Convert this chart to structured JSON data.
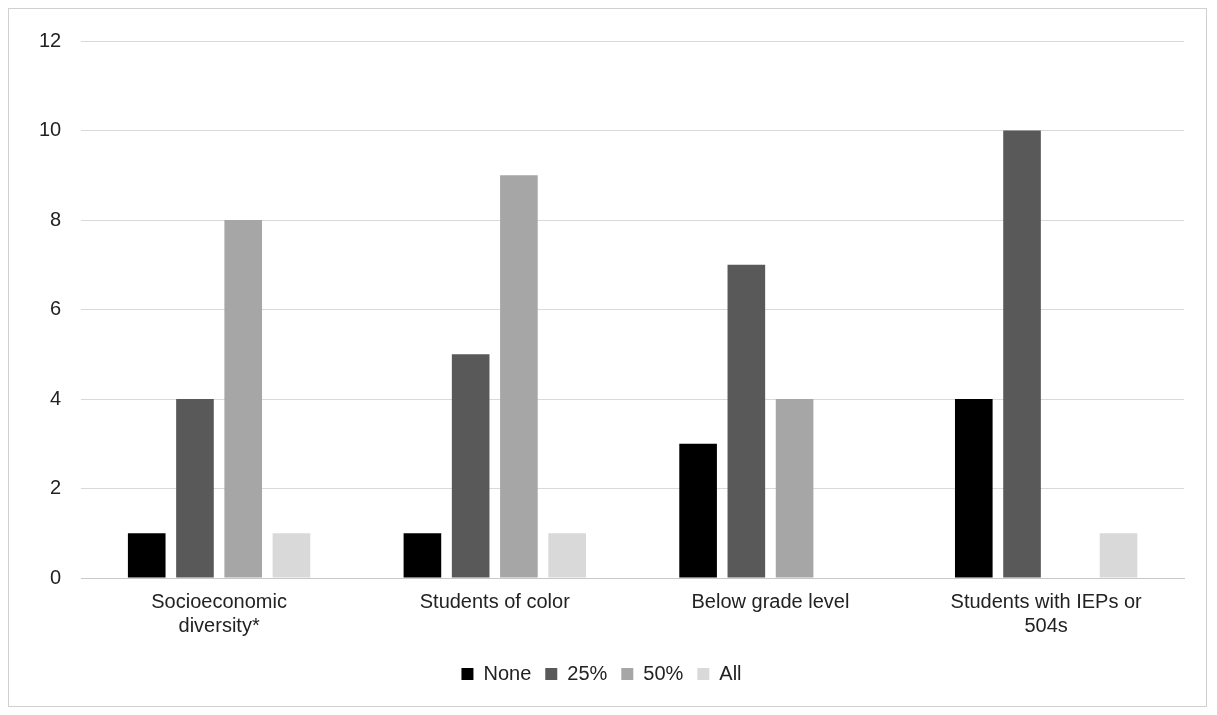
{
  "chart_data": {
    "type": "bar",
    "categories": [
      "Socioeconomic diversity*",
      "Students of color",
      "Below grade level",
      "Students with IEPs or 504s"
    ],
    "series": [
      {
        "name": "None",
        "color": "#000000",
        "values": [
          1,
          1,
          3,
          4
        ]
      },
      {
        "name": "25%",
        "color": "#595959",
        "values": [
          4,
          5,
          7,
          10
        ]
      },
      {
        "name": "50%",
        "color": "#a6a6a6",
        "values": [
          8,
          9,
          4,
          0
        ]
      },
      {
        "name": "All",
        "color": "#d9d9d9",
        "values": [
          1,
          1,
          0,
          1
        ]
      }
    ],
    "ylim": [
      0,
      12
    ],
    "yticks": [
      0,
      2,
      4,
      6,
      8,
      10,
      12
    ],
    "grid": "y",
    "legend": "bottom"
  }
}
